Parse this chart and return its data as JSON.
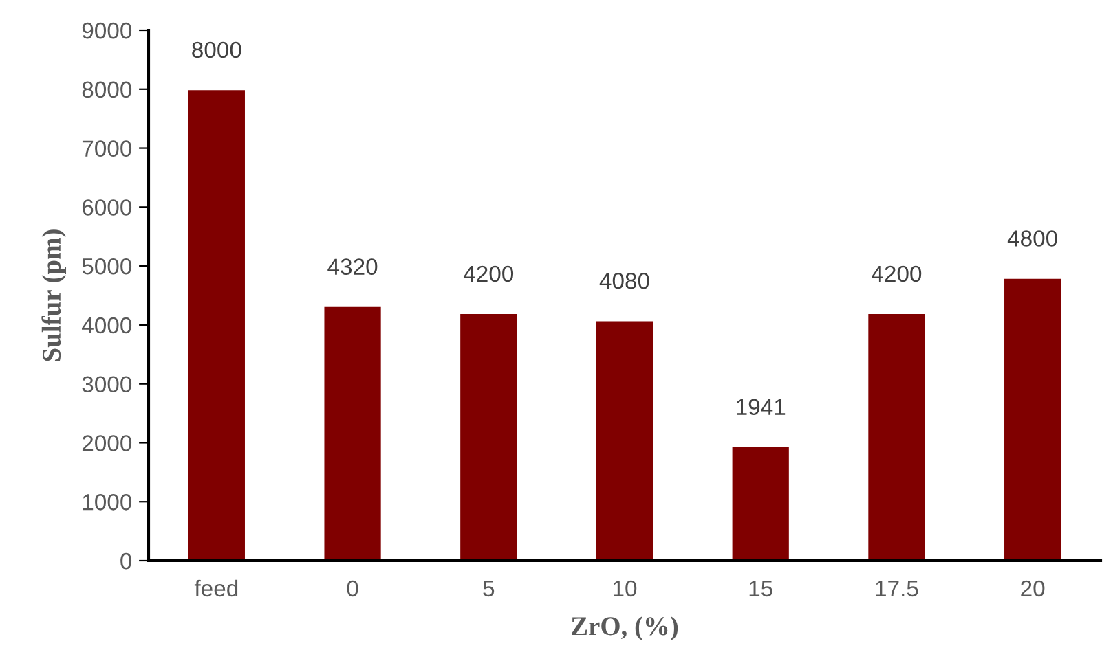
{
  "chart_data": {
    "type": "bar",
    "xlabel": "ZrO, (%)",
    "ylabel": "Sulfur (pm)",
    "categories": [
      "feed",
      "0",
      "5",
      "10",
      "15",
      "17.5",
      "20"
    ],
    "values": [
      8000,
      4320,
      4200,
      4080,
      1941,
      4200,
      4800
    ],
    "color": "#800000",
    "ylim": [
      0,
      9000
    ],
    "yticks": [
      0,
      1000,
      2000,
      3000,
      4000,
      5000,
      6000,
      7000,
      8000,
      9000
    ],
    "data_labels": true,
    "grid": false,
    "legend": false
  }
}
